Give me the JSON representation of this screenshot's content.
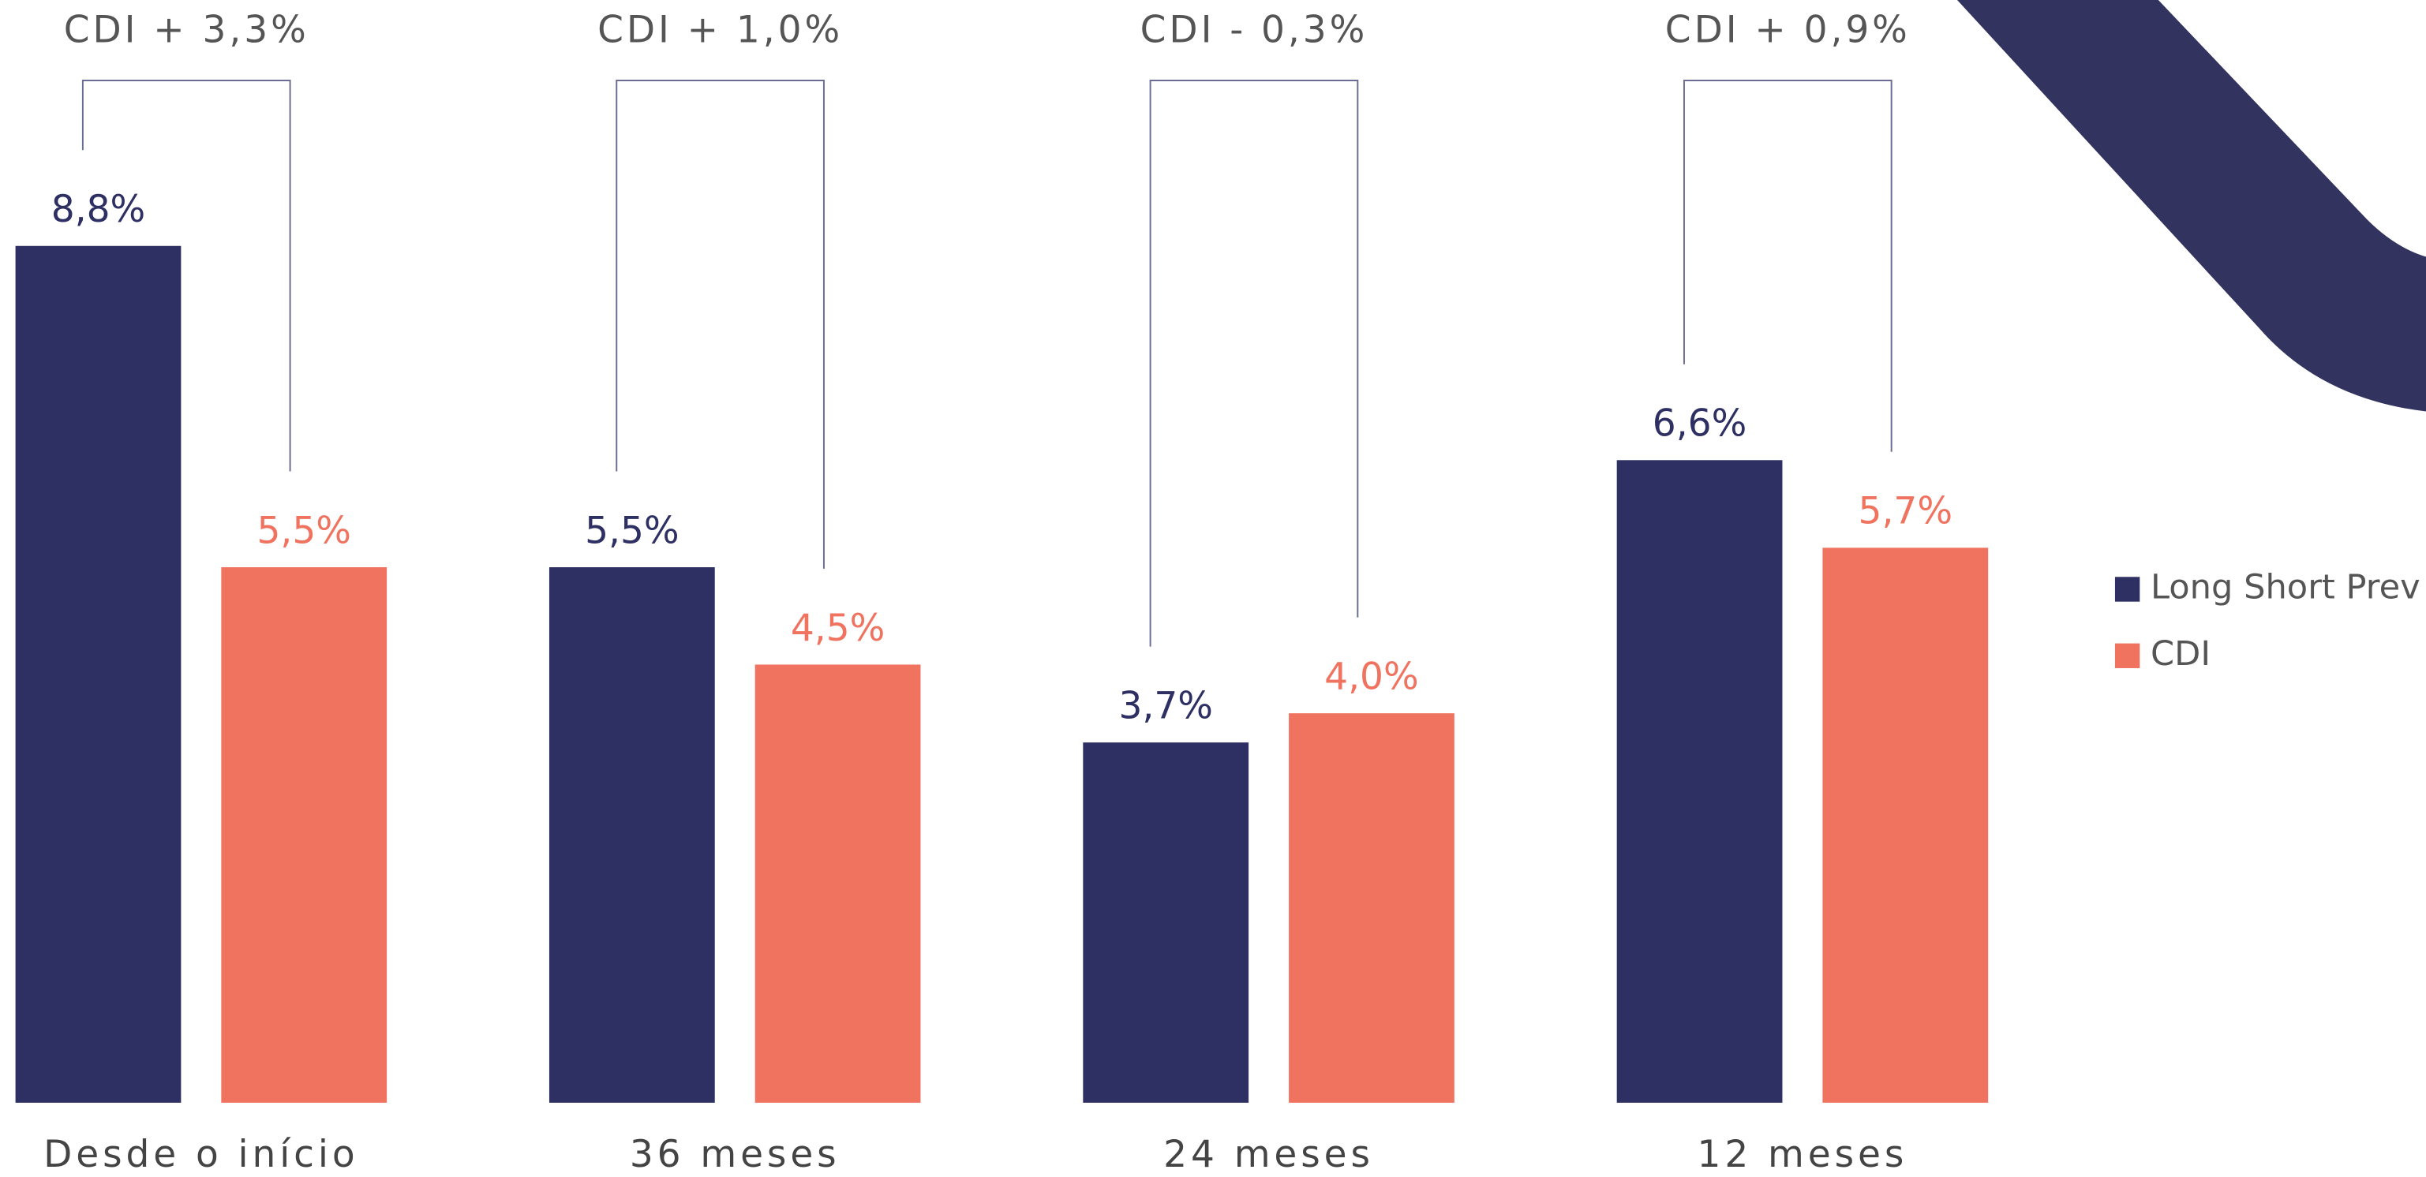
{
  "chart_data": {
    "type": "bar",
    "categories": [
      "Desde o início",
      "36 meses",
      "24 meses",
      "12 meses"
    ],
    "series": [
      {
        "name": "Long Short Prev",
        "color": "#2e3063",
        "values": [
          8.8,
          5.5,
          3.7,
          6.6
        ],
        "value_labels": [
          "8,8%",
          "5,5%",
          "3,7%",
          "6,6%"
        ]
      },
      {
        "name": "CDI",
        "color": "#f07360",
        "values": [
          5.5,
          4.5,
          4.0,
          5.7
        ],
        "value_labels": [
          "5,5%",
          "4,5%",
          "4,0%",
          "5,7%"
        ]
      }
    ],
    "annotations": [
      "CDI + 3,3%",
      "CDI + 1,0%",
      "CDI - 0,3%",
      "CDI + 0,9%"
    ],
    "legend": "right"
  }
}
